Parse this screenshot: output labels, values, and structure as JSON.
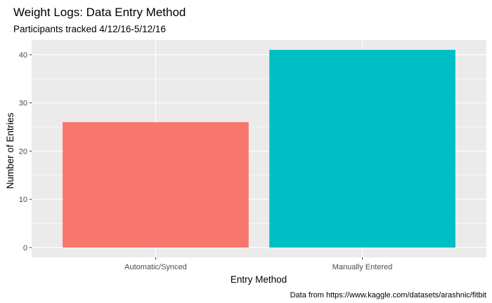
{
  "chart_data": {
    "type": "bar",
    "title": "Weight Logs: Data Entry Method",
    "subtitle": "Participants tracked 4/12/16-5/12/16",
    "xlabel": "Entry Method",
    "ylabel": "Number of Entries",
    "caption": "Data from https://www.kaggle.com/datasets/arashnic/fitbit",
    "categories": [
      "Automatic/Synced",
      "Manually Entered"
    ],
    "values": [
      26,
      41
    ],
    "colors": [
      "#F8766D",
      "#00BFC4"
    ],
    "ylim": [
      -2.05,
      43.05
    ],
    "yticks": [
      0,
      10,
      20,
      30,
      40
    ],
    "panel_background": "#EBEBEB",
    "grid": true,
    "legend": "none"
  }
}
